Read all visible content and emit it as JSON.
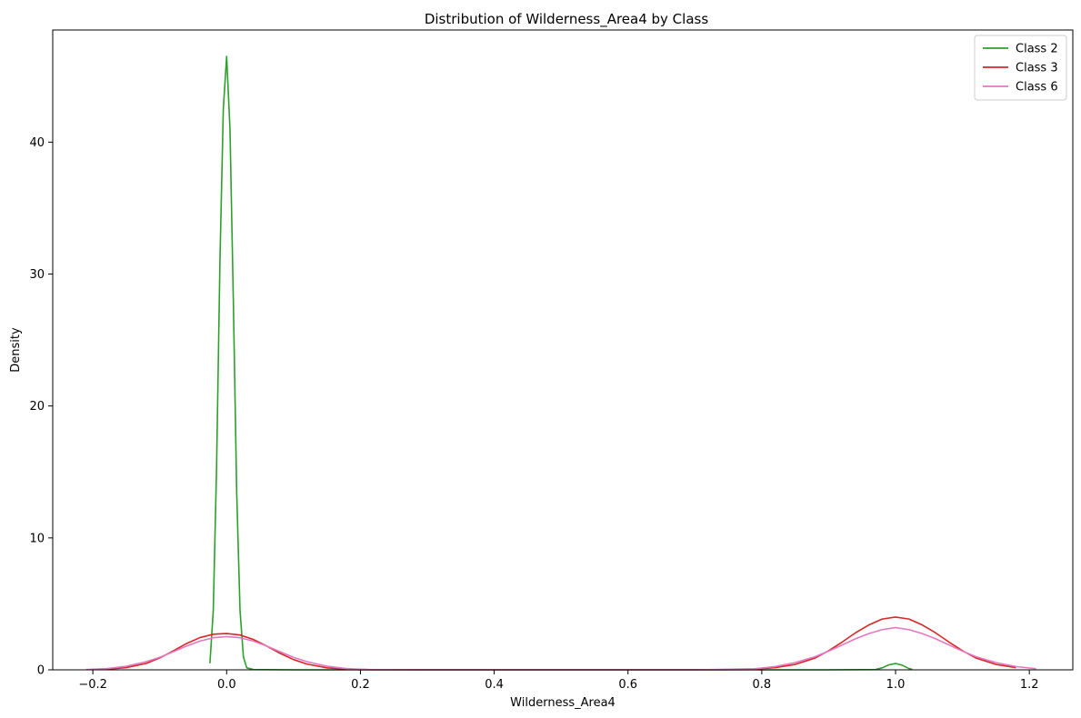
{
  "chart_data": {
    "type": "line",
    "title": "Distribution of Wilderness_Area4 by Class",
    "xlabel": "Wilderness_Area4",
    "ylabel": "Density",
    "xlim": [
      -0.26,
      1.265
    ],
    "ylim": [
      0,
      48.5
    ],
    "xticks": [
      -0.2,
      0.0,
      0.2,
      0.4,
      0.6,
      0.8,
      1.0,
      1.2
    ],
    "xtick_labels": [
      "−0.2",
      "0.0",
      "0.2",
      "0.4",
      "0.6",
      "0.8",
      "1.0",
      "1.2"
    ],
    "yticks": [
      0,
      10,
      20,
      30,
      40
    ],
    "ytick_labels": [
      "0",
      "10",
      "20",
      "30",
      "40"
    ],
    "grid": false,
    "legend_position": "top-right",
    "series": [
      {
        "name": "Class 2",
        "color": "#2ca02c",
        "x": [
          -0.025,
          -0.02,
          -0.015,
          -0.01,
          -0.005,
          0.0,
          0.005,
          0.01,
          0.015,
          0.02,
          0.025,
          0.03,
          0.04,
          0.1,
          0.3,
          0.5,
          0.7,
          0.9,
          0.97,
          0.98,
          0.99,
          1.0,
          1.01,
          1.02,
          1.025
        ],
        "y": [
          0.5,
          4.5,
          15.5,
          31.0,
          42.5,
          46.5,
          41.0,
          28.0,
          13.5,
          4.5,
          1.0,
          0.15,
          0.02,
          0.0,
          0.0,
          0.0,
          0.0,
          0.0,
          0.02,
          0.15,
          0.38,
          0.48,
          0.35,
          0.1,
          0.03
        ]
      },
      {
        "name": "Class 3",
        "color": "#d62728",
        "x": [
          -0.18,
          -0.15,
          -0.12,
          -0.1,
          -0.08,
          -0.06,
          -0.04,
          -0.02,
          0.0,
          0.02,
          0.04,
          0.06,
          0.08,
          0.1,
          0.12,
          0.15,
          0.18,
          0.22,
          0.3,
          0.5,
          0.7,
          0.78,
          0.82,
          0.85,
          0.88,
          0.9,
          0.92,
          0.94,
          0.96,
          0.98,
          1.0,
          1.02,
          1.04,
          1.06,
          1.08,
          1.1,
          1.12,
          1.15,
          1.18
        ],
        "y": [
          0.04,
          0.17,
          0.49,
          0.9,
          1.43,
          1.99,
          2.44,
          2.7,
          2.75,
          2.64,
          2.3,
          1.8,
          1.25,
          0.78,
          0.44,
          0.15,
          0.04,
          0.01,
          0.0,
          0.0,
          0.0,
          0.02,
          0.17,
          0.41,
          0.9,
          1.45,
          2.1,
          2.8,
          3.4,
          3.85,
          4.0,
          3.85,
          3.4,
          2.8,
          2.1,
          1.45,
          0.9,
          0.41,
          0.17
        ]
      },
      {
        "name": "Class 6",
        "color": "#e377c2",
        "x": [
          -0.21,
          -0.18,
          -0.15,
          -0.12,
          -0.1,
          -0.08,
          -0.06,
          -0.04,
          -0.02,
          0.0,
          0.02,
          0.04,
          0.06,
          0.08,
          0.1,
          0.12,
          0.15,
          0.18,
          0.21,
          0.3,
          0.5,
          0.7,
          0.79,
          0.82,
          0.85,
          0.88,
          0.9,
          0.92,
          0.94,
          0.96,
          0.98,
          1.0,
          1.02,
          1.04,
          1.06,
          1.08,
          1.1,
          1.12,
          1.15,
          1.18,
          1.21
        ],
        "y": [
          0.02,
          0.09,
          0.27,
          0.62,
          0.95,
          1.37,
          1.8,
          2.18,
          2.43,
          2.52,
          2.43,
          2.18,
          1.8,
          1.37,
          0.95,
          0.62,
          0.27,
          0.09,
          0.02,
          0.0,
          0.0,
          0.0,
          0.08,
          0.25,
          0.55,
          1.0,
          1.42,
          1.88,
          2.35,
          2.75,
          3.05,
          3.2,
          3.05,
          2.75,
          2.35,
          1.88,
          1.42,
          1.0,
          0.55,
          0.25,
          0.08
        ]
      }
    ]
  }
}
